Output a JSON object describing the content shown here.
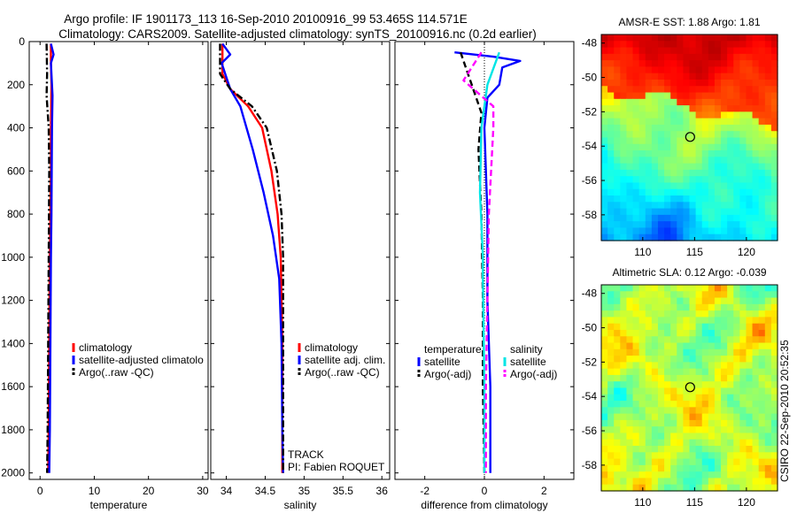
{
  "title": {
    "line1": "Argo profile: IF 1901173_113 16-Sep-2010 20100916_99 53.465S 114.571E",
    "line2": "Climatology: CARS2009. Satellite-adjusted climatology: synTS_20100916.nc (0.2d earlier)"
  },
  "colors": {
    "red": "#ff0000",
    "blue": "#0000ff",
    "black": "#000000",
    "cyan": "#00e5e5",
    "magenta": "#ff00ff"
  },
  "chart_data": [
    {
      "type": "line",
      "name": "temperature",
      "xlabel": "temperature",
      "ylabel": "",
      "xlim": [
        -2,
        31
      ],
      "ylim": [
        0,
        2030
      ],
      "y_reversed": true,
      "xticks": [
        0,
        10,
        20,
        30
      ],
      "xtick_labels": [
        "0",
        "10",
        "20",
        "30"
      ],
      "yticks": [
        0,
        200,
        400,
        600,
        800,
        1000,
        1200,
        1400,
        1600,
        1800,
        2000
      ],
      "ytick_labels": [
        "0",
        "200",
        "400",
        "600",
        "800",
        "1000",
        "1200",
        "1400",
        "1600",
        "1800",
        "2000"
      ],
      "series": [
        {
          "name": "climatology",
          "color": "red",
          "dash": "solid",
          "x": [
            2.0,
            2.0,
            2.1,
            2.0,
            2.0,
            1.9,
            1.8,
            1.7,
            1.6,
            1.5
          ],
          "y": [
            10,
            100,
            200,
            400,
            600,
            800,
            1000,
            1400,
            1800,
            2000
          ]
        },
        {
          "name": "satellite-adjusted climatology",
          "color": "blue",
          "dash": "solid",
          "x": [
            2.0,
            2.5,
            2.0,
            2.3,
            2.2,
            2.1,
            2.0,
            1.9,
            1.8,
            1.7
          ],
          "y": [
            10,
            60,
            100,
            250,
            400,
            800,
            1000,
            1400,
            1800,
            2000
          ]
        },
        {
          "name": "Argo(..raw -QC)",
          "color": "black",
          "dash": "dashdot",
          "x": [
            1.2,
            1.3,
            1.2,
            1.6,
            1.7,
            1.6,
            1.5,
            1.4,
            1.3
          ],
          "y": [
            10,
            150,
            250,
            400,
            600,
            1000,
            1400,
            1800,
            2000
          ]
        }
      ],
      "legend": [
        "climatology",
        "satellite-adjusted climatolo",
        "Argo(..raw -QC)"
      ],
      "legend_location": "lower-right"
    },
    {
      "type": "line",
      "name": "salinity",
      "xlabel": "salinity",
      "ylabel": "",
      "xlim": [
        33.8,
        36.1
      ],
      "ylim": [
        0,
        2030
      ],
      "y_reversed": true,
      "xticks": [
        34,
        34.5,
        35,
        35.5,
        36
      ],
      "xtick_labels": [
        "34",
        "34.5",
        "35",
        "35.5",
        "36"
      ],
      "series": [
        {
          "name": "climatology",
          "color": "red",
          "dash": "solid",
          "x": [
            33.95,
            33.95,
            34.05,
            34.28,
            34.46,
            34.58,
            34.66,
            34.7,
            34.72,
            34.72,
            34.72
          ],
          "y": [
            10,
            150,
            220,
            300,
            400,
            600,
            800,
            1000,
            1400,
            1800,
            2000
          ]
        },
        {
          "name": "satellite adj. clim.",
          "color": "blue",
          "dash": "solid",
          "x": [
            33.95,
            34.05,
            33.94,
            34.05,
            34.18,
            34.34,
            34.48,
            34.6,
            34.68,
            34.71,
            34.72,
            34.73
          ],
          "y": [
            10,
            60,
            100,
            220,
            300,
            500,
            700,
            900,
            1100,
            1400,
            1800,
            2000
          ]
        },
        {
          "name": "Argo(..raw -QC)",
          "color": "black",
          "dash": "dashdot",
          "x": [
            33.92,
            33.92,
            34.05,
            34.33,
            34.52,
            34.65,
            34.71,
            34.73,
            34.73
          ],
          "y": [
            10,
            150,
            220,
            300,
            400,
            600,
            800,
            1000,
            2000
          ]
        }
      ],
      "legend": [
        "climatology",
        "satellite adj. clim.",
        "Argo(..raw -QC)"
      ],
      "legend_location": "lower-right",
      "annotations": [
        "TRACK",
        "PI: Fabien ROQUET"
      ]
    },
    {
      "type": "line",
      "name": "difference",
      "xlabel": "difference from climatology",
      "ylabel": "",
      "xlim": [
        -3,
        3
      ],
      "ylim": [
        0,
        2030
      ],
      "y_reversed": true,
      "xticks": [
        -2,
        0,
        2
      ],
      "xtick_labels": [
        "-2",
        "0",
        "2"
      ],
      "series": [
        {
          "name": "temperature satellite",
          "color": "blue",
          "dash": "solid",
          "x": [
            -1.0,
            0.3,
            1.2,
            0.6,
            0.5,
            0.1,
            0.0,
            0.1,
            0.1,
            0.2,
            0.2
          ],
          "y": [
            50,
            70,
            90,
            120,
            200,
            260,
            400,
            800,
            1200,
            1600,
            2000
          ]
        },
        {
          "name": "temperature Argo(-adj)",
          "color": "black",
          "dash": "dashed",
          "x": [
            -0.8,
            -0.3,
            -0.1,
            -0.2,
            -0.1,
            -0.05,
            -0.05,
            0.0
          ],
          "y": [
            50,
            250,
            330,
            500,
            800,
            1200,
            1600,
            2000
          ]
        },
        {
          "name": "salinity satellite",
          "color": "cyan",
          "dash": "solid",
          "x": [
            0.5,
            0.1,
            -0.1,
            -0.15,
            -0.05,
            -0.05,
            0.0,
            0.0
          ],
          "y": [
            50,
            200,
            400,
            700,
            1000,
            1100,
            1600,
            2000
          ]
        },
        {
          "name": "salinity Argo(-adj)",
          "color": "magenta",
          "dash": "dashed",
          "x": [
            -0.1,
            -0.7,
            0.3,
            0.3,
            0.15,
            0.1,
            0.05,
            0.05
          ],
          "y": [
            50,
            180,
            300,
            400,
            800,
            1200,
            1600,
            2000
          ]
        }
      ],
      "legend_groups": [
        {
          "title": "temperature",
          "items": [
            "satellite",
            "Argo(-adj)"
          ]
        },
        {
          "title": "salinity",
          "items": [
            "satellite",
            "Argo(-adj)"
          ]
        }
      ],
      "legend_location": "lower-right"
    },
    {
      "type": "heatmap",
      "name": "sst_map",
      "title": "AMSR-E SST: 1.88 Argo: 1.81",
      "xlim": [
        106,
        123
      ],
      "ylim": [
        -59.5,
        -47.5
      ],
      "xticks": [
        110,
        115,
        120
      ],
      "xtick_labels": [
        "110",
        "115",
        "120"
      ],
      "yticks": [
        -48,
        -50,
        -52,
        -54,
        -56,
        -58
      ],
      "ytick_labels": [
        "-48",
        "-50",
        "-52",
        "-54",
        "-56",
        "-58"
      ],
      "marker": {
        "lon": 114.571,
        "lat": -53.465
      }
    },
    {
      "type": "heatmap",
      "name": "sla_map",
      "title": "Altimetric SLA: 0.12 Argo: -0.039",
      "xlim": [
        106,
        123
      ],
      "ylim": [
        -59.5,
        -47.5
      ],
      "xticks": [
        110,
        115,
        120
      ],
      "xtick_labels": [
        "110",
        "115",
        "120"
      ],
      "yticks": [
        -48,
        -50,
        -52,
        -54,
        -56,
        -58
      ],
      "ytick_labels": [
        "-48",
        "-50",
        "-52",
        "-54",
        "-56",
        "-58"
      ],
      "marker": {
        "lon": 114.571,
        "lat": -53.465
      }
    }
  ],
  "credit": "CSIRO 22-Sep-2010 20:52:35"
}
